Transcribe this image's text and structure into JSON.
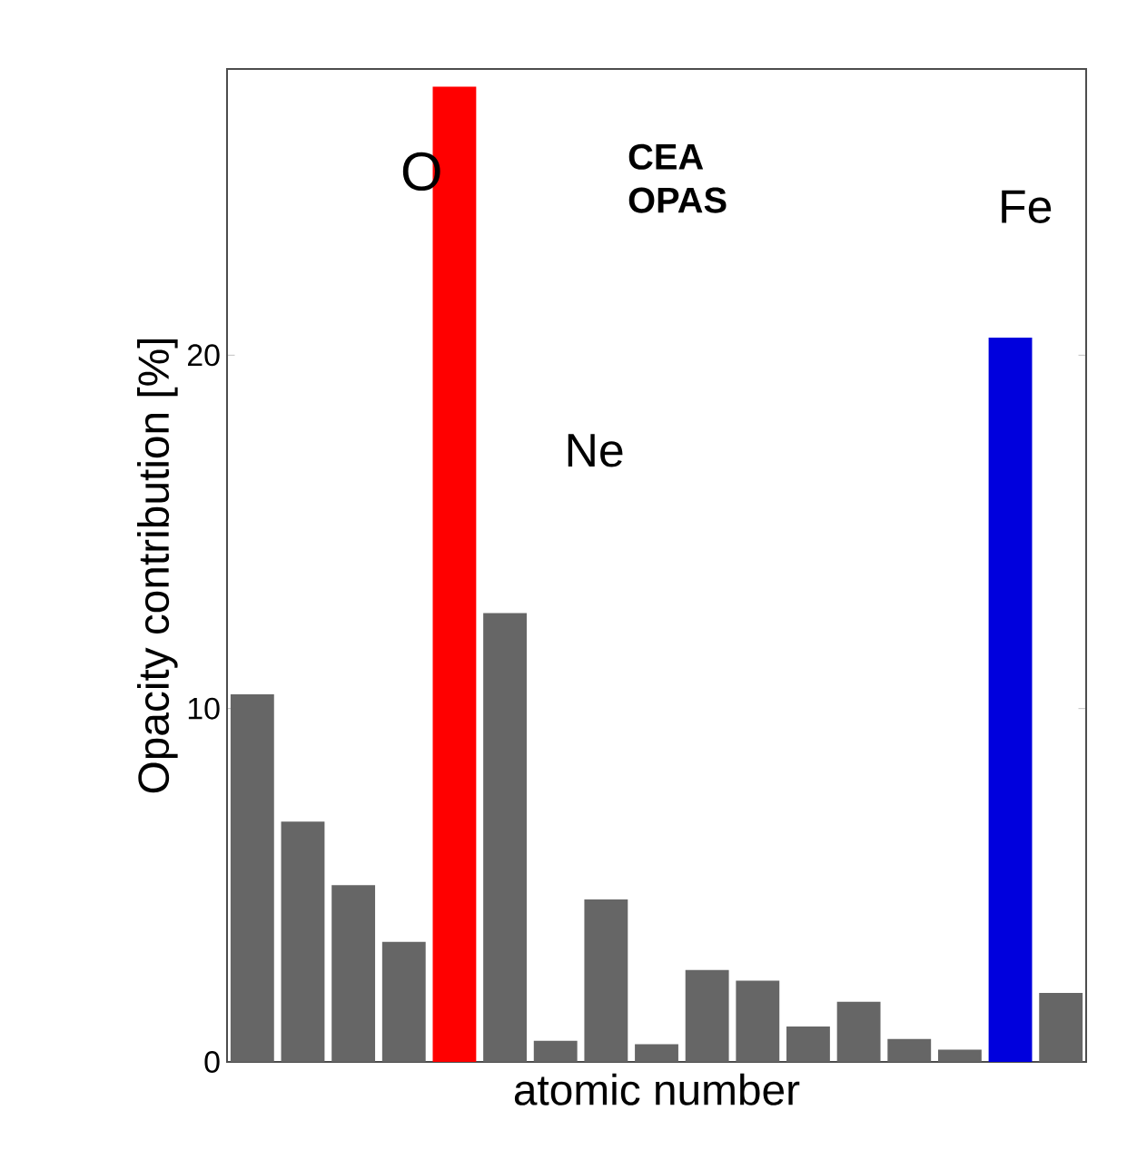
{
  "chart_data": {
    "type": "bar",
    "xlabel": "atomic number",
    "ylabel": "Opacity contribution [%]",
    "categories": [
      null,
      null,
      null,
      null,
      null,
      null,
      null,
      null,
      null,
      null,
      null,
      null,
      null,
      null,
      null,
      null,
      null
    ],
    "values": [
      10.4,
      6.8,
      5.0,
      3.4,
      27.6,
      12.7,
      0.6,
      4.6,
      0.5,
      2.6,
      2.3,
      1.0,
      1.7,
      0.65,
      0.35,
      20.5,
      1.95
    ],
    "colors": [
      "#666666",
      "#666666",
      "#666666",
      "#666666",
      "#ff0000",
      "#666666",
      "#666666",
      "#666666",
      "#666666",
      "#666666",
      "#666666",
      "#666666",
      "#666666",
      "#666666",
      "#666666",
      "#0000dd",
      "#666666"
    ],
    "ylim": [
      0,
      28.1
    ],
    "yticks": [
      0,
      10,
      20
    ],
    "grid": false,
    "annotations": [
      "O",
      "Ne",
      "Fe",
      "**CEA OPAS**"
    ]
  }
}
